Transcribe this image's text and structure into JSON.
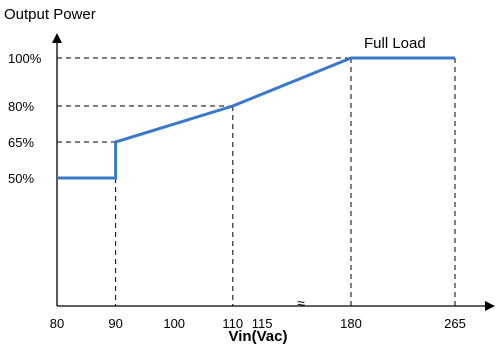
{
  "chart_data": {
    "type": "line",
    "ylabel": "Output Power",
    "xlabel": "Vin(Vac)",
    "x_ticks": [
      "80",
      "90",
      "100",
      "110",
      "115",
      "180",
      "265"
    ],
    "y_ticks": [
      "50%",
      "65%",
      "80%",
      "100%"
    ],
    "axis_break_symbol": "≈",
    "annotation": "Full Load",
    "series": [
      {
        "points": [
          {
            "x": 80,
            "y": 50
          },
          {
            "x": 90,
            "y": 50
          },
          {
            "x": 90,
            "y": 65
          },
          {
            "x": 110,
            "y": 80
          },
          {
            "x": 180,
            "y": 100
          },
          {
            "x": 265,
            "y": 100
          }
        ]
      }
    ],
    "guides": [
      {
        "x": 90,
        "y": 65
      },
      {
        "x": 110,
        "y": 80
      },
      {
        "x": 180,
        "y": 100
      },
      {
        "x": 265,
        "y": 100
      }
    ],
    "grid": false,
    "x_axis_broken": true,
    "line_color": "#3a78c9"
  }
}
